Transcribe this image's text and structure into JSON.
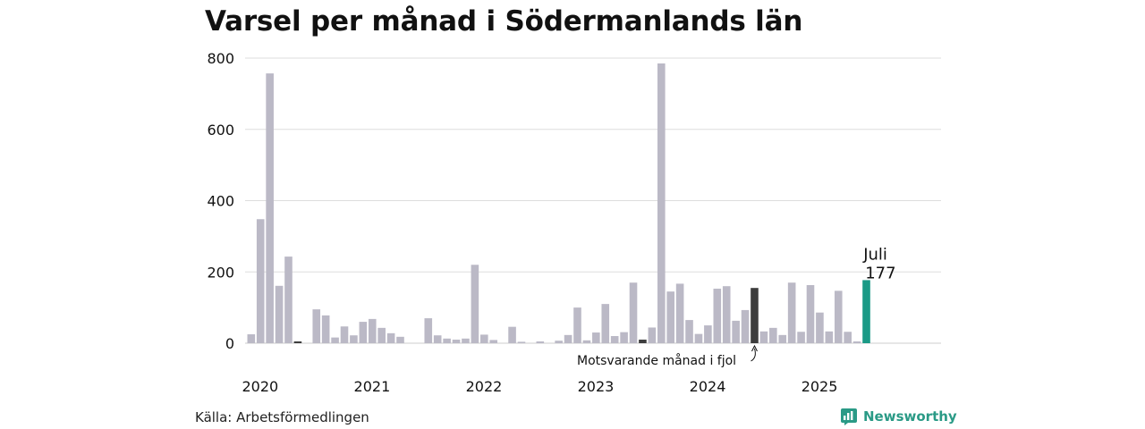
{
  "title": "Varsel per månad i Södermanlands län",
  "source": "Källa: Arbetsförmedlingen",
  "brand": "Newsworthy",
  "colors": {
    "default": "#bbb9c6",
    "previous_year": "#3d3d3d",
    "current": "#1a9a86",
    "grid": "#dddddd",
    "brand": "#2a9a86"
  },
  "chart_data": {
    "type": "bar",
    "title": "Varsel per månad i Södermanlands län",
    "xlabel": "",
    "ylabel": "",
    "ylim": [
      0,
      800
    ],
    "yticks": [
      0,
      200,
      400,
      600,
      800
    ],
    "grid": true,
    "year_labels": [
      "2020",
      "2021",
      "2022",
      "2023",
      "2024",
      "2025"
    ],
    "start": "2020-01",
    "values": [
      25,
      348,
      757,
      161,
      243,
      5,
      0,
      95,
      78,
      16,
      47,
      22,
      60,
      68,
      43,
      28,
      18,
      0,
      0,
      70,
      22,
      13,
      10,
      13,
      220,
      24,
      9,
      0,
      46,
      4,
      0,
      5,
      0,
      7,
      23,
      100,
      8,
      30,
      110,
      20,
      31,
      170,
      10,
      44,
      785,
      145,
      167,
      65,
      26,
      50,
      153,
      160,
      63,
      93,
      155,
      33,
      43,
      23,
      170,
      32,
      163,
      86,
      33,
      147,
      32,
      5,
      177
    ],
    "highlight_previous_year_index": 54,
    "highlight_current_index": 66,
    "previous_year_black_indices": [
      5,
      42
    ],
    "annotations": {
      "current_month": "Juli",
      "current_value": "177",
      "previous_year": "Motsvarande månad i fjol"
    }
  }
}
